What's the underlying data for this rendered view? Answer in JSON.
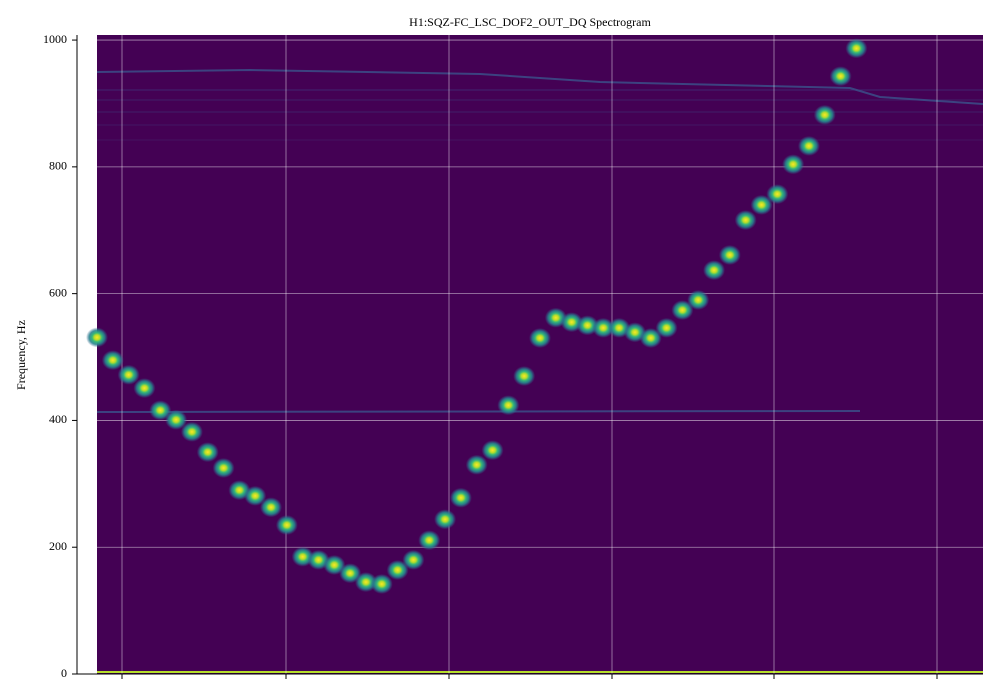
{
  "chart_data": {
    "type": "spectrogram",
    "title": "H1:SQZ-FC_LSC_DOF2_OUT_DQ Spectrogram",
    "y_label": "Frequency, Hz",
    "categories": [
      null,
      null,
      null,
      null,
      null,
      null,
      null,
      null,
      null,
      null,
      null,
      null,
      null,
      null,
      null,
      null,
      null,
      null,
      null,
      null,
      null,
      null,
      null,
      null,
      null,
      null,
      null,
      null,
      null,
      null,
      null,
      null,
      null,
      null,
      null,
      null,
      null,
      null,
      null,
      null,
      null,
      null,
      null,
      null,
      null,
      null,
      null,
      null,
      null,
      null,
      null,
      null,
      null,
      null,
      null,
      null
    ],
    "values": [
      531,
      495,
      472,
      451,
      416,
      401,
      382,
      350,
      325,
      290,
      281,
      263,
      235,
      185,
      180,
      172,
      159,
      145,
      142,
      164,
      180,
      211,
      244,
      278,
      330,
      353,
      424,
      470,
      530,
      562,
      555,
      550,
      546,
      546,
      539,
      530,
      546,
      574,
      590,
      637,
      661,
      716,
      740,
      757,
      804,
      833,
      882,
      943,
      987,
      null,
      null,
      null,
      null,
      null,
      null,
      null
    ],
    "ylim": [
      0,
      1008
    ],
    "yticks": [
      0,
      200,
      400,
      600,
      800,
      1000
    ],
    "grid": true,
    "background_color": "#440154"
  }
}
